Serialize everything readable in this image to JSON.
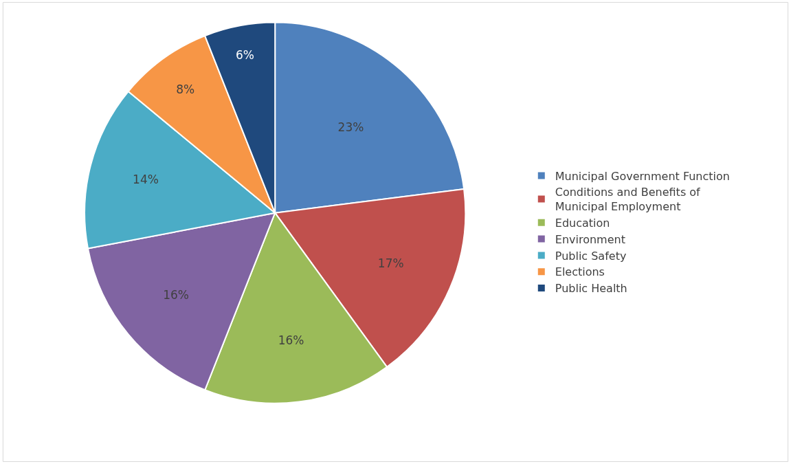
{
  "chart_data": {
    "type": "pie",
    "categories": [
      "Municipal Government Function",
      "Conditions and Benefits of Municipal Employment",
      "Education",
      "Environment",
      "Public Safety",
      "Elections",
      "Public Health"
    ],
    "values": [
      23,
      17,
      16,
      16,
      14,
      8,
      6
    ],
    "value_labels": [
      "23%",
      "17%",
      "16%",
      "16%",
      "14%",
      "8%",
      "6%"
    ],
    "colors": [
      "#4f81bd",
      "#c0504d",
      "#9bbb59",
      "#8064a2",
      "#4bacc6",
      "#f79646",
      "#1f497d"
    ],
    "legend": "right"
  }
}
